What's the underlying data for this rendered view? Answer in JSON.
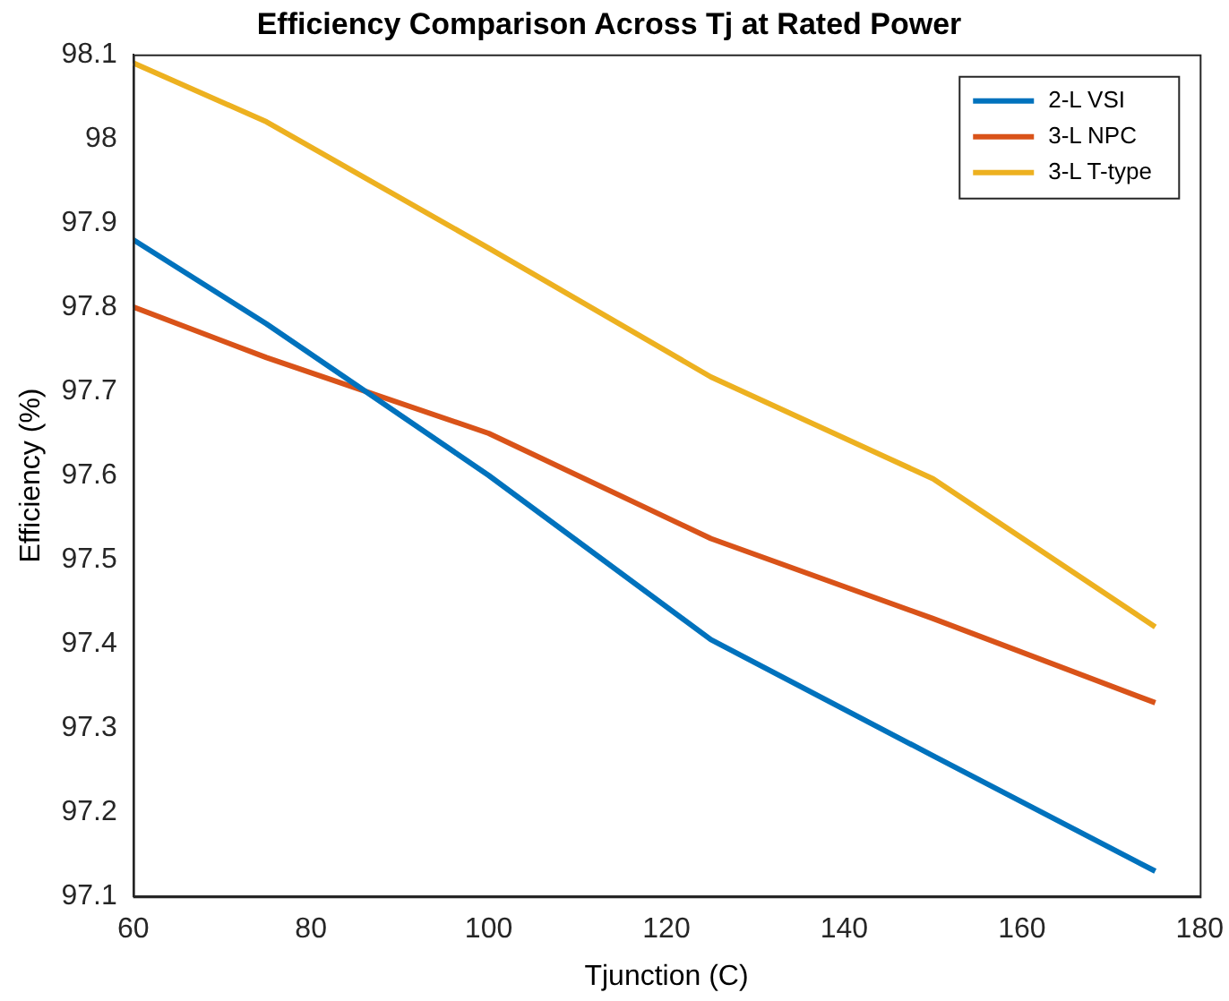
{
  "chart_data": {
    "type": "line",
    "title": "Efficiency Comparison Across Tj at Rated Power",
    "xlabel": "Tjunction (C)",
    "ylabel": "Efficiency (%)",
    "x": [
      60,
      75,
      100,
      125,
      150,
      175
    ],
    "series": [
      {
        "name": "2-L VSI",
        "color": "#0072bd",
        "values": [
          97.88,
          97.78,
          97.6,
          97.405,
          97.267,
          97.13
        ]
      },
      {
        "name": "3-L NPC",
        "color": "#d95319",
        "values": [
          97.8,
          97.74,
          97.65,
          97.525,
          97.43,
          97.33
        ]
      },
      {
        "name": "3-L T-type",
        "color": "#edb120",
        "values": [
          98.09,
          98.02,
          97.87,
          97.717,
          97.596,
          97.42
        ]
      }
    ],
    "xlim": [
      60,
      180
    ],
    "xticks": [
      60,
      80,
      100,
      120,
      140,
      160,
      180
    ],
    "ylim": [
      97.1,
      98.1
    ],
    "yticks": [
      97.1,
      97.2,
      97.3,
      97.4,
      97.5,
      97.6,
      97.7,
      97.8,
      97.9,
      98,
      98.1
    ],
    "grid": false,
    "legend": "top right",
    "marker": "none",
    "line_style": "solid"
  }
}
